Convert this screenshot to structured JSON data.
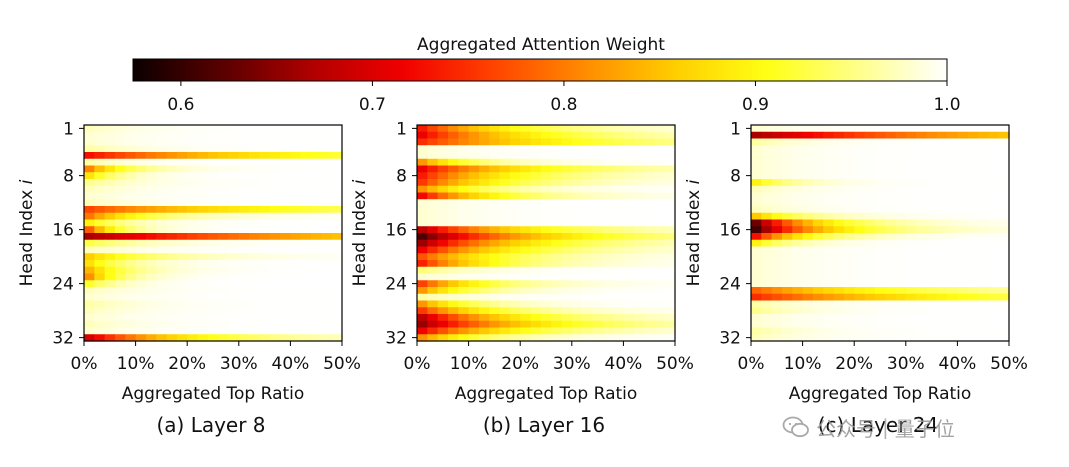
{
  "watermark": {
    "channel": "公众号",
    "name": "量子位",
    "icon": "wechat-icon"
  },
  "chart_data": {
    "type": "heatmap",
    "colormap": "hot",
    "colorbar": {
      "title": "Aggregated Attention Weight",
      "range": [
        0.575,
        1.0
      ],
      "ticks": [
        0.6,
        0.7,
        0.8,
        0.9,
        1.0
      ],
      "tick_labels": [
        "0.6",
        "0.7",
        "0.8",
        "0.9",
        "1.0"
      ],
      "stops": [
        "#0b0000",
        "#5a0000",
        "#b20000",
        "#f20000",
        "#ff4400",
        "#ff8c00",
        "#ffce00",
        "#ffff14",
        "#ffff88",
        "#ffffff"
      ]
    },
    "xlabel": "Aggregated Top Ratio",
    "ylabel_prefix": "Head Index",
    "ylabel_var": "i",
    "x_ticks": [
      "0%",
      "10%",
      "20%",
      "30%",
      "40%",
      "50%"
    ],
    "x_range": [
      0,
      50
    ],
    "y_ticks": [
      "1",
      "8",
      "16",
      "24",
      "32"
    ],
    "y_tick_values": [
      1,
      8,
      16,
      24,
      32
    ],
    "num_heads": 32,
    "panels": [
      {
        "caption": "(a) Layer 8",
        "head_min_weight": [
          0.97,
          0.98,
          0.98,
          0.96,
          0.72,
          0.96,
          0.78,
          0.86,
          0.95,
          0.97,
          0.98,
          0.97,
          0.76,
          0.78,
          0.88,
          0.74,
          0.66,
          0.92,
          0.97,
          0.85,
          0.86,
          0.82,
          0.78,
          0.9,
          0.97,
          0.98,
          0.96,
          0.97,
          0.98,
          0.97,
          0.98,
          0.68
        ],
        "head_decay": [
          10,
          10,
          10,
          10,
          40,
          8,
          8,
          6,
          10,
          10,
          10,
          10,
          40,
          12,
          8,
          6,
          60,
          12,
          10,
          14,
          8,
          8,
          6,
          6,
          10,
          10,
          10,
          10,
          10,
          10,
          10,
          20
        ]
      },
      {
        "caption": "(b) Layer 16",
        "head_min_weight": [
          0.72,
          0.7,
          0.74,
          0.98,
          0.98,
          0.8,
          0.7,
          0.72,
          0.74,
          0.8,
          0.7,
          0.98,
          0.98,
          0.98,
          0.98,
          0.66,
          0.6,
          0.64,
          0.7,
          0.76,
          0.72,
          0.94,
          0.98,
          0.74,
          0.8,
          0.96,
          0.8,
          0.74,
          0.66,
          0.64,
          0.7,
          0.8
        ],
        "head_decay": [
          18,
          22,
          30,
          10,
          10,
          10,
          22,
          18,
          16,
          12,
          14,
          10,
          10,
          10,
          10,
          20,
          24,
          20,
          18,
          16,
          14,
          10,
          10,
          12,
          10,
          10,
          10,
          14,
          18,
          22,
          18,
          12
        ]
      },
      {
        "caption": "(c) Layer 24",
        "head_min_weight": [
          0.98,
          0.66,
          0.96,
          0.98,
          0.98,
          0.98,
          0.98,
          0.98,
          0.88,
          0.97,
          0.98,
          0.98,
          0.97,
          0.84,
          0.6,
          0.58,
          0.7,
          0.88,
          0.98,
          0.98,
          0.98,
          0.98,
          0.98,
          0.98,
          0.78,
          0.74,
          0.96,
          0.95,
          0.98,
          0.98,
          0.96,
          0.97
        ],
        "head_decay": [
          10,
          60,
          10,
          10,
          10,
          10,
          10,
          10,
          8,
          10,
          10,
          10,
          10,
          10,
          12,
          14,
          10,
          8,
          10,
          10,
          10,
          10,
          10,
          10,
          30,
          40,
          10,
          10,
          10,
          10,
          10,
          10
        ]
      }
    ]
  }
}
